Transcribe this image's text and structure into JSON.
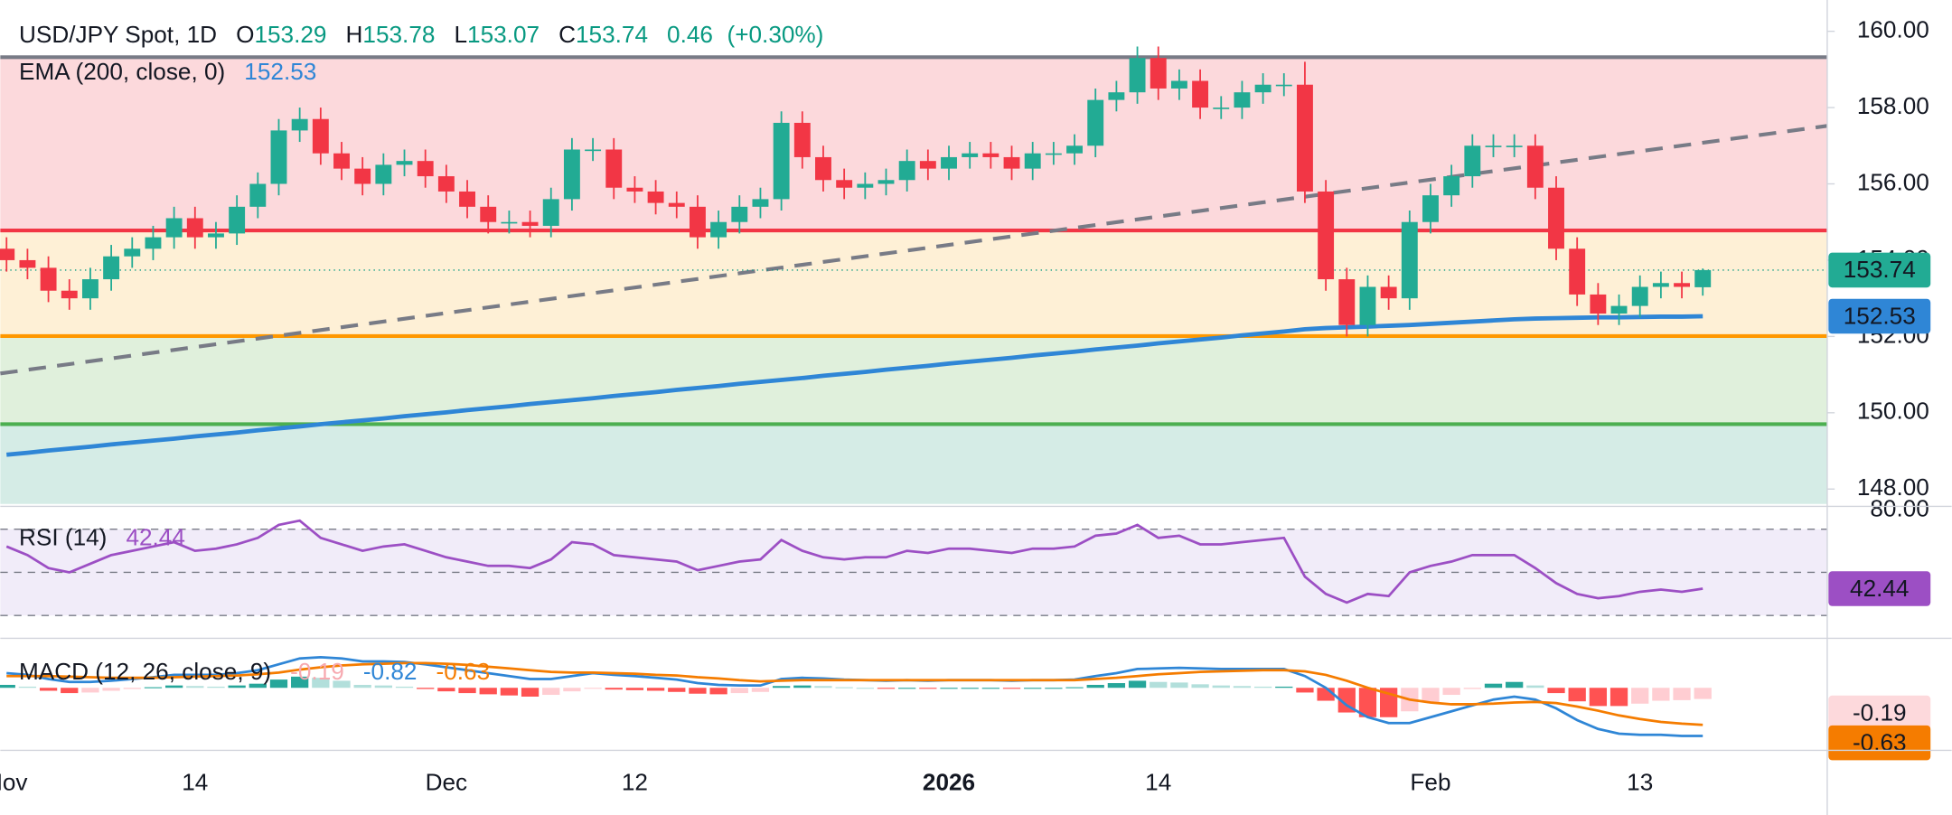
{
  "header": {
    "symbol": "USD/JPY Spot, 1D",
    "open_label": "O",
    "open": 153.29,
    "high_label": "H",
    "high": 153.78,
    "low_label": "L",
    "low": 153.07,
    "close_label": "C",
    "close": 153.74,
    "change": 0.46,
    "change_percent": "(+0.30%)"
  },
  "chart_data": [
    {
      "type": "candlestick",
      "up_color": "#22ab94",
      "down_color": "#f23645",
      "open": [
        154.3,
        154.0,
        153.8,
        153.2,
        153.0,
        153.5,
        154.1,
        154.3,
        154.6,
        155.1,
        154.6,
        154.7,
        155.4,
        156.0,
        157.4,
        157.7,
        156.8,
        156.4,
        156.0,
        156.5,
        156.6,
        156.2,
        155.8,
        155.4,
        155.0,
        155.0,
        154.9,
        155.6,
        156.9,
        156.9,
        155.9,
        155.8,
        155.5,
        155.4,
        154.6,
        155.0,
        155.4,
        155.6,
        157.6,
        156.7,
        156.1,
        155.9,
        156.0,
        156.1,
        156.6,
        156.4,
        156.7,
        156.8,
        156.7,
        156.4,
        156.8,
        156.8,
        157.0,
        158.2,
        158.4,
        159.3,
        158.5,
        158.7,
        158.0,
        158.0,
        158.4,
        158.6,
        158.6,
        155.8,
        153.5,
        152.3,
        153.3,
        153.0,
        155.0,
        155.7,
        156.2,
        157.0,
        157.0,
        157.0,
        155.9,
        154.3,
        153.1,
        152.6,
        152.8,
        153.3,
        153.4,
        153.29
      ],
      "high": [
        154.6,
        154.3,
        154.1,
        153.5,
        153.8,
        154.4,
        154.6,
        154.9,
        155.4,
        155.4,
        155.0,
        155.7,
        156.3,
        157.7,
        158.0,
        158.0,
        157.1,
        156.7,
        156.8,
        156.9,
        156.9,
        156.5,
        156.1,
        155.7,
        155.3,
        155.3,
        155.9,
        157.2,
        157.2,
        157.2,
        156.2,
        156.1,
        155.8,
        155.7,
        155.3,
        155.7,
        155.9,
        157.9,
        157.9,
        157.0,
        156.4,
        156.3,
        156.4,
        156.9,
        156.9,
        157.0,
        157.1,
        157.1,
        157.0,
        157.1,
        157.1,
        157.3,
        158.5,
        158.7,
        159.6,
        159.6,
        159.0,
        159.0,
        158.3,
        158.7,
        158.9,
        158.9,
        159.2,
        156.1,
        153.8,
        153.6,
        153.6,
        155.3,
        156.0,
        156.5,
        157.3,
        157.3,
        157.3,
        157.3,
        156.2,
        154.6,
        153.4,
        153.1,
        153.6,
        153.7,
        153.7,
        153.78
      ],
      "low": [
        153.7,
        153.5,
        152.9,
        152.7,
        152.7,
        153.2,
        153.8,
        154.0,
        154.3,
        154.3,
        154.3,
        154.4,
        155.1,
        155.7,
        157.1,
        156.5,
        156.1,
        155.7,
        155.7,
        156.2,
        155.9,
        155.5,
        155.1,
        154.7,
        154.7,
        154.6,
        154.6,
        155.3,
        156.6,
        155.6,
        155.5,
        155.2,
        155.1,
        154.3,
        154.3,
        154.7,
        155.1,
        155.3,
        156.4,
        155.8,
        155.6,
        155.6,
        155.7,
        155.8,
        156.1,
        156.1,
        156.4,
        156.4,
        156.1,
        156.1,
        156.5,
        156.5,
        156.7,
        157.9,
        158.1,
        158.2,
        158.2,
        157.7,
        157.7,
        157.7,
        158.1,
        158.3,
        155.5,
        153.2,
        152.0,
        152.0,
        152.7,
        152.7,
        154.7,
        155.4,
        155.9,
        156.7,
        156.7,
        155.6,
        154.0,
        152.8,
        152.3,
        152.3,
        152.5,
        153.0,
        153.0,
        153.07
      ],
      "close": [
        154.0,
        153.8,
        153.2,
        153.0,
        153.5,
        154.1,
        154.3,
        154.6,
        155.1,
        154.6,
        154.7,
        155.4,
        156.0,
        157.4,
        157.7,
        156.8,
        156.4,
        156.0,
        156.5,
        156.6,
        156.2,
        155.8,
        155.4,
        155.0,
        155.0,
        154.9,
        155.6,
        156.9,
        156.9,
        155.9,
        155.8,
        155.5,
        155.4,
        154.6,
        155.0,
        155.4,
        155.6,
        157.6,
        156.7,
        156.1,
        155.9,
        156.0,
        156.1,
        156.6,
        156.4,
        156.7,
        156.8,
        156.7,
        156.4,
        156.8,
        156.8,
        157.0,
        158.2,
        158.4,
        159.3,
        158.5,
        158.7,
        158.0,
        158.0,
        158.4,
        158.6,
        158.6,
        155.8,
        153.5,
        152.3,
        153.3,
        153.0,
        155.0,
        155.7,
        156.2,
        157.0,
        157.0,
        157.0,
        155.9,
        154.3,
        153.1,
        152.6,
        152.8,
        153.3,
        153.4,
        153.3,
        153.74
      ],
      "ema": {
        "name": "EMA (200, close, 0)",
        "value": 152.53,
        "color": "#2f86d6",
        "values": [
          148.9,
          148.95,
          149.01,
          149.06,
          149.11,
          149.17,
          149.22,
          149.27,
          149.32,
          149.38,
          149.43,
          149.48,
          149.54,
          149.59,
          149.64,
          149.7,
          149.75,
          149.8,
          149.85,
          149.91,
          149.96,
          150.01,
          150.07,
          150.12,
          150.17,
          150.23,
          150.28,
          150.33,
          150.38,
          150.44,
          150.49,
          150.54,
          150.6,
          150.65,
          150.7,
          150.76,
          150.81,
          150.86,
          150.91,
          150.97,
          151.02,
          151.07,
          151.13,
          151.18,
          151.23,
          151.29,
          151.34,
          151.39,
          151.44,
          151.5,
          151.55,
          151.6,
          151.66,
          151.71,
          151.76,
          151.82,
          151.87,
          151.92,
          151.97,
          152.03,
          152.08,
          152.13,
          152.19,
          152.22,
          152.24,
          152.26,
          152.28,
          152.3,
          152.33,
          152.36,
          152.39,
          152.42,
          152.45,
          152.47,
          152.48,
          152.49,
          152.5,
          152.5,
          152.51,
          152.52,
          152.52,
          152.53
        ]
      },
      "levels": [
        {
          "value": 159.32,
          "color": "#787b86"
        },
        {
          "value": 154.78,
          "color": "#f23645"
        },
        {
          "value": 152.01,
          "color": "#ff9800"
        },
        {
          "value": 149.7,
          "color": "#4caf50"
        }
      ],
      "zones": [
        {
          "from": 159.32,
          "to": 154.78,
          "color": "#fcd9dc"
        },
        {
          "from": 154.78,
          "to": 152.01,
          "color": "#fef0d6"
        },
        {
          "from": 152.01,
          "to": 149.7,
          "color": "#e0f0dc"
        },
        {
          "from": 149.7,
          "to": 147.61,
          "color": "#d5ece6"
        }
      ],
      "trendline": [
        151.03,
        157.52
      ],
      "ylim": [
        147.61,
        160.82
      ],
      "yticks": [
        {
          "value": 160,
          "label": "160.00"
        },
        {
          "value": 158,
          "label": "158.00"
        },
        {
          "value": 156,
          "label": "156.00"
        },
        {
          "value": 154,
          "label": "154.00"
        },
        {
          "value": 152,
          "label": "152.00"
        },
        {
          "value": 150,
          "label": "150.00"
        },
        {
          "value": 148,
          "label": "148.00"
        }
      ],
      "xticks": [
        {
          "value": 0,
          "label": "Nov"
        },
        {
          "value": 9,
          "label": "14"
        },
        {
          "value": 21,
          "label": "Dec"
        },
        {
          "value": 30,
          "label": "12"
        },
        {
          "value": 45,
          "label": "2026"
        },
        {
          "value": 55,
          "label": "14"
        },
        {
          "value": 68,
          "label": "Feb"
        },
        {
          "value": 78,
          "label": "13"
        }
      ]
    },
    {
      "type": "rsi",
      "name": "RSI (14)",
      "color": "#9c4fc4",
      "value": 42.44,
      "values": [
        62,
        58,
        52,
        50,
        54,
        58,
        60,
        62,
        64,
        60,
        61,
        63,
        66,
        72,
        74,
        66,
        63,
        60,
        62,
        63,
        60,
        57,
        55,
        53,
        53,
        52,
        56,
        64,
        63,
        58,
        57,
        56,
        55,
        51,
        53,
        55,
        56,
        65,
        60,
        57,
        56,
        57,
        57,
        60,
        59,
        61,
        61,
        60,
        59,
        61,
        61,
        62,
        67,
        68,
        72,
        66,
        67,
        63,
        63,
        64,
        65,
        66,
        48,
        40,
        36,
        40,
        39,
        50,
        53,
        55,
        58,
        58,
        58,
        52,
        45,
        40,
        38,
        39,
        41,
        42,
        41,
        42.44
      ],
      "bands": [
        70,
        50,
        30
      ],
      "ylim": [
        20,
        80
      ],
      "yticks": [
        {
          "value": 80,
          "label": "80.00"
        }
      ]
    },
    {
      "type": "macd",
      "name": "MACD (12, 26, close, 9)",
      "ylim": [
        -1.0,
        0.8
      ],
      "histogram": {
        "value": -0.19,
        "color": "#f7a9b0",
        "values": [
          0.05,
          0.02,
          -0.05,
          -0.09,
          -0.08,
          -0.05,
          -0.02,
          0.01,
          0.04,
          0.03,
          0.02,
          0.04,
          0.07,
          0.14,
          0.19,
          0.17,
          0.12,
          0.05,
          0.04,
          0.02,
          -0.02,
          -0.06,
          -0.09,
          -0.11,
          -0.13,
          -0.15,
          -0.12,
          -0.06,
          -0.01,
          -0.03,
          -0.04,
          -0.05,
          -0.07,
          -0.1,
          -0.11,
          -0.09,
          -0.07,
          0.03,
          0.04,
          0.03,
          0.01,
          0,
          -0.01,
          0,
          -0.01,
          0,
          0,
          0,
          -0.01,
          0,
          0,
          0.01,
          0.05,
          0.08,
          0.12,
          0.1,
          0.09,
          0.06,
          0.04,
          0.03,
          0.02,
          0.02,
          -0.08,
          -0.22,
          -0.42,
          -0.5,
          -0.5,
          -0.4,
          -0.25,
          -0.12,
          -0.02,
          0.07,
          0.1,
          0.04,
          -0.09,
          -0.23,
          -0.31,
          -0.31,
          -0.27,
          -0.22,
          -0.21,
          -0.19
        ]
      },
      "macd": {
        "value": -0.82,
        "color": "#2f86d6",
        "values": [
          0.25,
          0.22,
          0.15,
          0.1,
          0.1,
          0.12,
          0.15,
          0.18,
          0.22,
          0.22,
          0.22,
          0.25,
          0.3,
          0.4,
          0.5,
          0.52,
          0.5,
          0.45,
          0.45,
          0.44,
          0.4,
          0.35,
          0.3,
          0.25,
          0.2,
          0.15,
          0.15,
          0.2,
          0.25,
          0.22,
          0.2,
          0.17,
          0.14,
          0.08,
          0.05,
          0.04,
          0.04,
          0.15,
          0.17,
          0.16,
          0.14,
          0.13,
          0.12,
          0.13,
          0.12,
          0.13,
          0.13,
          0.13,
          0.12,
          0.13,
          0.13,
          0.14,
          0.2,
          0.25,
          0.32,
          0.33,
          0.34,
          0.33,
          0.32,
          0.32,
          0.32,
          0.32,
          0.2,
          0.0,
          -0.3,
          -0.5,
          -0.6,
          -0.6,
          -0.5,
          -0.4,
          -0.3,
          -0.2,
          -0.15,
          -0.2,
          -0.35,
          -0.55,
          -0.7,
          -0.78,
          -0.8,
          -0.8,
          -0.82,
          -0.82
        ]
      },
      "signal": {
        "value": -0.63,
        "color": "#f57c00",
        "values": [
          0.2,
          0.2,
          0.2,
          0.19,
          0.18,
          0.17,
          0.17,
          0.17,
          0.18,
          0.19,
          0.2,
          0.21,
          0.23,
          0.26,
          0.31,
          0.35,
          0.38,
          0.4,
          0.41,
          0.42,
          0.42,
          0.41,
          0.39,
          0.36,
          0.33,
          0.3,
          0.27,
          0.26,
          0.26,
          0.25,
          0.24,
          0.22,
          0.21,
          0.18,
          0.16,
          0.13,
          0.11,
          0.12,
          0.13,
          0.13,
          0.13,
          0.13,
          0.13,
          0.13,
          0.13,
          0.13,
          0.13,
          0.13,
          0.13,
          0.13,
          0.13,
          0.13,
          0.15,
          0.17,
          0.2,
          0.23,
          0.25,
          0.27,
          0.28,
          0.29,
          0.3,
          0.3,
          0.28,
          0.22,
          0.12,
          0.0,
          -0.1,
          -0.2,
          -0.25,
          -0.28,
          -0.28,
          -0.27,
          -0.25,
          -0.24,
          -0.26,
          -0.32,
          -0.39,
          -0.47,
          -0.53,
          -0.58,
          -0.61,
          -0.63
        ]
      }
    }
  ]
}
